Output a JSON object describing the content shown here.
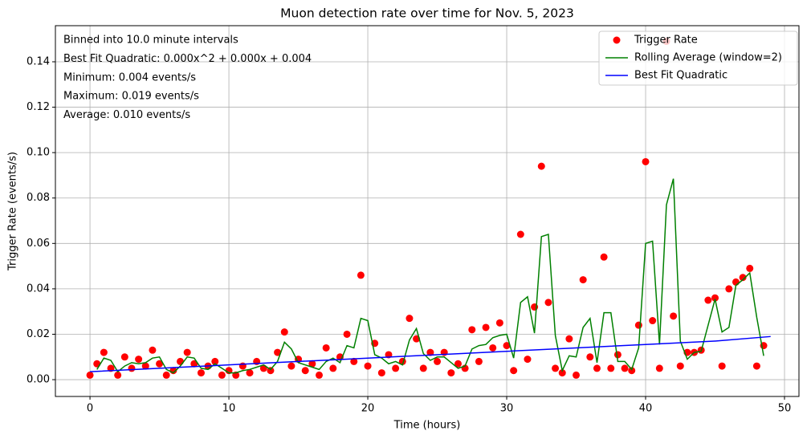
{
  "chart_data": {
    "type": "line",
    "title": "Muon detection rate over time for Nov. 5, 2023",
    "xlabel": "Time (hours)",
    "ylabel": "Trigger Rate (events/s)",
    "annotations": [
      "Binned into 10.0 minute intervals",
      "Best Fit Quadratic: 0.000x^2 + 0.000x + 0.004",
      "Minimum: 0.004 events/s",
      "Maximum: 0.019 events/s",
      "Average: 0.010 events/s"
    ],
    "grid": true,
    "legend": "upper right",
    "xlim": [
      -2.49,
      51.04
    ],
    "ylim": [
      -0.0074,
      0.1559
    ],
    "xticks": [
      0,
      10,
      20,
      30,
      40,
      50
    ],
    "yticks": [
      {
        "value": 0,
        "label": "0.00"
      },
      {
        "value": 0.02,
        "label": "0.02"
      },
      {
        "value": 0.04,
        "label": "0.04"
      },
      {
        "value": 0.06,
        "label": "0.06"
      },
      {
        "value": 0.08,
        "label": "0.08"
      },
      {
        "value": 0.1,
        "label": "0.10"
      },
      {
        "value": 0.12,
        "label": "0.12"
      },
      {
        "value": 0.14,
        "label": "0.14"
      }
    ],
    "x": [
      0,
      0.5,
      1,
      1.5,
      2,
      2.5,
      3,
      3.5,
      4,
      4.5,
      5,
      5.5,
      6,
      6.5,
      7,
      7.5,
      8,
      8.5,
      9,
      9.5,
      10,
      10.5,
      11,
      11.5,
      12,
      12.5,
      13,
      13.5,
      14,
      14.5,
      15,
      15.5,
      16,
      16.5,
      17,
      17.5,
      18,
      18.5,
      19,
      19.5,
      20,
      20.5,
      21,
      21.5,
      22,
      22.5,
      23,
      23.5,
      24,
      24.5,
      25,
      25.5,
      26,
      26.5,
      27,
      27.5,
      28,
      28.5,
      29,
      29.5,
      30,
      30.5,
      31,
      31.5,
      32,
      32.5,
      33,
      33.5,
      34,
      34.5,
      35,
      35.5,
      36,
      36.5,
      37,
      37.5,
      38,
      38.5,
      39,
      39.5,
      40,
      40.5,
      41,
      41.5,
      42,
      42.5,
      43,
      43.5,
      44,
      44.5,
      45,
      45.5,
      46,
      46.5,
      47,
      47.5,
      48,
      48.5
    ],
    "series": [
      {
        "name": "Trigger Rate",
        "color": "#ff0000",
        "style": "marker",
        "values": [
          0.002,
          0.007,
          0.012,
          0.005,
          0.002,
          0.01,
          0.005,
          0.009,
          0.006,
          0.013,
          0.007,
          0.002,
          0.004,
          0.008,
          0.012,
          0.007,
          0.003,
          0.006,
          0.008,
          0.002,
          0.004,
          0.002,
          0.006,
          0.003,
          0.008,
          0.005,
          0.004,
          0.012,
          0.021,
          0.006,
          0.009,
          0.004,
          0.007,
          0.002,
          0.014,
          0.005,
          0.01,
          0.02,
          0.008,
          0.046,
          0.006,
          0.016,
          0.003,
          0.011,
          0.005,
          0.008,
          0.027,
          0.018,
          0.005,
          0.012,
          0.008,
          0.012,
          0.003,
          0.007,
          0.005,
          0.022,
          0.008,
          0.023,
          0.014,
          0.025,
          0.015,
          0.004,
          0.064,
          0.009,
          0.032,
          0.094,
          0.034,
          0.005,
          0.003,
          0.018,
          0.002,
          0.044,
          0.01,
          0.005,
          0.054,
          0.005,
          0.011,
          0.005,
          0.004,
          0.024,
          0.096,
          0.026,
          0.005,
          0.149,
          0.028,
          0.006,
          0.012,
          0.012,
          0.013,
          0.035,
          0.036,
          0.006,
          0.04,
          0.043,
          0.045,
          0.049,
          0.006,
          0.015
        ]
      },
      {
        "name": "Rolling Average (window=2)",
        "color": "#008000",
        "style": "line",
        "values": [
          null,
          0.0045,
          0.0095,
          0.0085,
          0.0035,
          0.006,
          0.0075,
          0.007,
          0.0075,
          0.0095,
          0.01,
          0.0045,
          0.003,
          0.006,
          0.01,
          0.0095,
          0.005,
          0.0045,
          0.007,
          0.005,
          0.003,
          0.003,
          0.004,
          0.0045,
          0.0055,
          0.0065,
          0.0045,
          0.008,
          0.0165,
          0.0135,
          0.0075,
          0.0065,
          0.0055,
          0.0045,
          0.008,
          0.0095,
          0.0075,
          0.015,
          0.014,
          0.027,
          0.026,
          0.011,
          0.0095,
          0.007,
          0.008,
          0.0065,
          0.0175,
          0.0225,
          0.0115,
          0.0085,
          0.01,
          0.01,
          0.0075,
          0.005,
          0.006,
          0.0135,
          0.015,
          0.0155,
          0.0185,
          0.0195,
          0.02,
          0.0095,
          0.034,
          0.0365,
          0.0205,
          0.063,
          0.064,
          0.0195,
          0.004,
          0.0105,
          0.01,
          0.023,
          0.027,
          0.0075,
          0.0295,
          0.0295,
          0.008,
          0.008,
          0.0045,
          0.014,
          0.06,
          0.061,
          0.0155,
          0.077,
          0.0885,
          0.017,
          0.009,
          0.012,
          0.0125,
          0.024,
          0.0355,
          0.021,
          0.023,
          0.0415,
          0.044,
          0.047,
          0.0275,
          0.0105
        ]
      },
      {
        "name": "Best Fit Quadratic",
        "color": "#0000ff",
        "style": "line",
        "x": [
          0,
          5,
          10,
          15,
          20,
          25,
          30,
          35,
          40,
          45,
          49
        ],
        "values": [
          0.0035,
          0.005,
          0.0065,
          0.008,
          0.0095,
          0.011,
          0.0125,
          0.014,
          0.0155,
          0.017,
          0.019
        ]
      }
    ]
  }
}
